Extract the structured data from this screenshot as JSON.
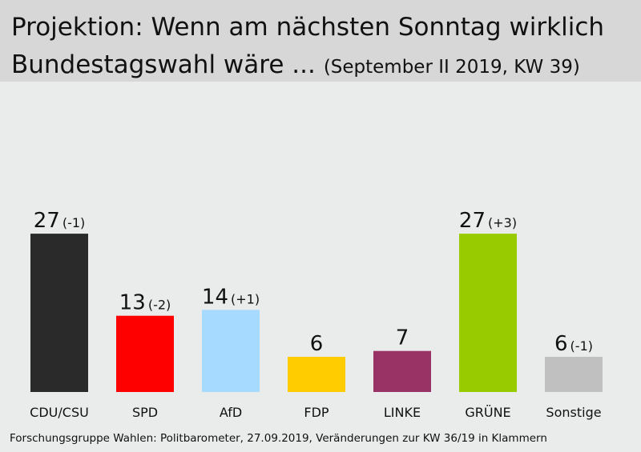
{
  "header": {
    "title_line1": "Projektion: Wenn am nächsten Sonntag wirklich",
    "title_line2": "Bundestagswahl wäre ...",
    "subtitle": "(September II 2019, KW 39)"
  },
  "chart_data": {
    "type": "bar",
    "categories": [
      "CDU/CSU",
      "SPD",
      "AfD",
      "FDP",
      "LINKE",
      "GRÜNE",
      "Sonstige"
    ],
    "values": [
      27,
      13,
      14,
      6,
      7,
      27,
      6
    ],
    "changes": [
      "(-1)",
      "(-2)",
      "(+1)",
      "",
      "",
      "(+3)",
      "(-1)"
    ],
    "colors": [
      "#2a2a2a",
      "#ff0000",
      "#a6dbff",
      "#ffcc00",
      "#993366",
      "#99cc00",
      "#c0c0c0"
    ],
    "unit": "",
    "grid": false,
    "legend": "none"
  },
  "footer": {
    "source": "Forschungsgruppe Wahlen: Politbarometer, 27.09.2019, Veränderungen zur KW 36/19 in Klammern"
  }
}
